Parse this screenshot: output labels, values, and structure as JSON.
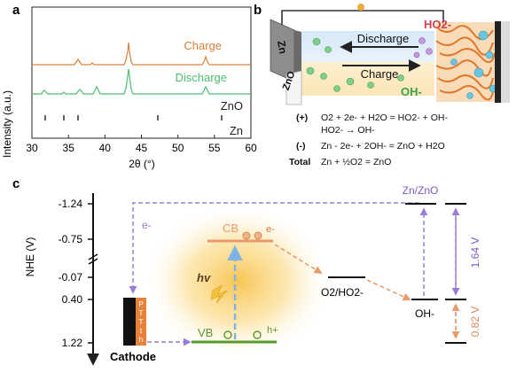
{
  "panels": {
    "a": {
      "label": "a",
      "ylabel": "Intensity (a.u.)",
      "xlabel": "2θ (°)",
      "ticks": [
        "30",
        "35",
        "40",
        "45",
        "50",
        "55",
        "60"
      ],
      "legend": {
        "charge": "Charge",
        "discharge": "Discharge",
        "zno": "ZnO",
        "zn": "Zn"
      },
      "colors": {
        "charge": "#d9823c",
        "discharge": "#4cbf70",
        "ref": "#222222"
      }
    },
    "b": {
      "label": "b",
      "zn": "Zn",
      "zno": "ZnO",
      "discharge": "Discharge",
      "charge": "Charge",
      "ho2": "HO2-",
      "oh": "OH-",
      "eq": {
        "pos_sign": "(+)",
        "pos1": "O2 + 2e- + H2O = HO2- + OH-",
        "pos2": "HO2- → OH-",
        "neg_sign": "(-)",
        "neg": "Zn - 2e- + 2OH- = ZnO + H2O",
        "total_label": "Total",
        "total": "Zn + ½O2 = ZnO"
      }
    },
    "c": {
      "label": "c",
      "ylabel": "NHE (V)",
      "levels": [
        "-1.24",
        "-0.75",
        "-0.07",
        "0.40",
        "1.22"
      ],
      "cb": "CB",
      "vb": "VB",
      "hv": "hv",
      "e": "e-",
      "h": "h+",
      "e_left": "e-",
      "o2ho2": "O2/HO2-",
      "oh": "OH-",
      "znzno": "Zn/ZnO",
      "v164": "1.64 V",
      "v082": "0.82 V",
      "cathode": "Cathode",
      "pttth": [
        "P",
        "T",
        "T",
        "t",
        "h"
      ],
      "colors": {
        "purple": "#9b7bd6",
        "orange": "#e89a6a",
        "green": "#5a9a2a",
        "blue": "#7fb3e6"
      }
    }
  }
}
